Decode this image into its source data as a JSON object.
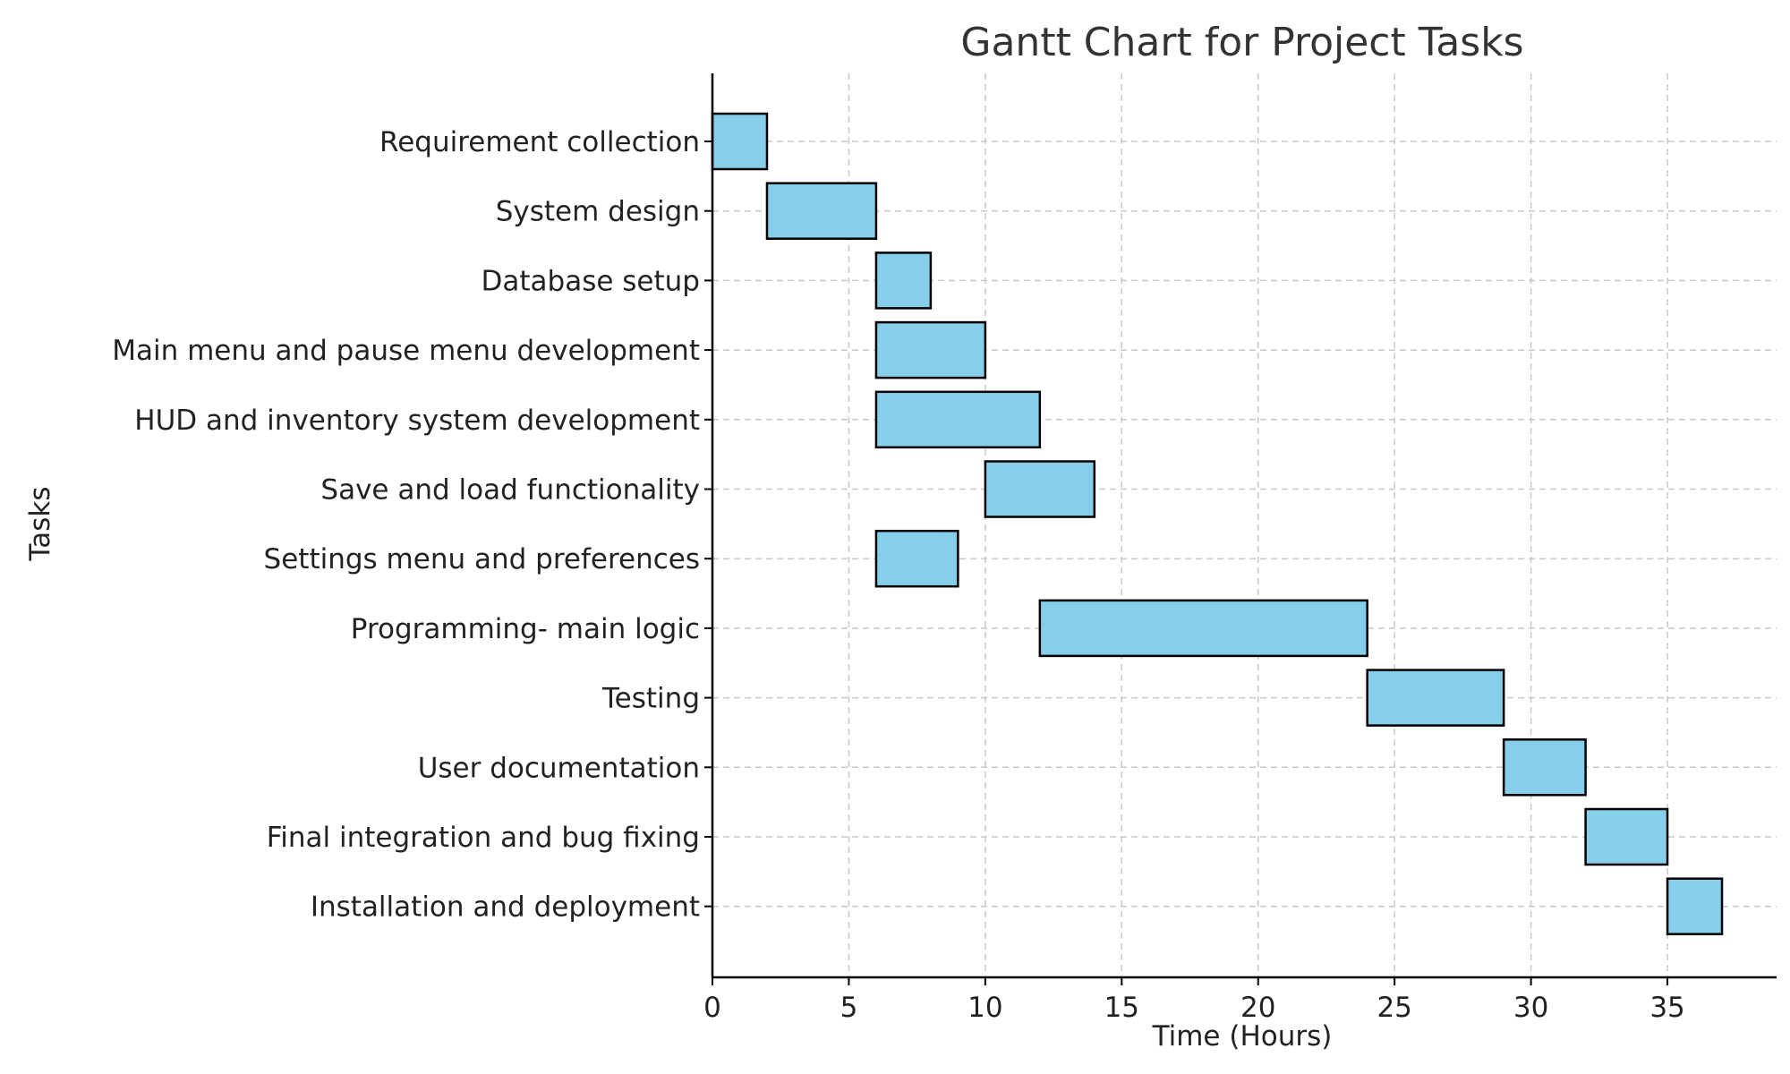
{
  "chart_data": {
    "type": "bar",
    "orientation": "horizontal",
    "title": "Gantt Chart for Project Tasks",
    "xlabel": "Time (Hours)",
    "ylabel": "Tasks",
    "xlim": [
      0,
      39
    ],
    "xticks": [
      0,
      5,
      10,
      15,
      20,
      25,
      30,
      35
    ],
    "grid": true,
    "bar_color": "#87CEEB",
    "bar_edge_color": "#000000",
    "tasks": [
      {
        "name": "Requirement collection",
        "start": 0,
        "end": 2
      },
      {
        "name": "System design",
        "start": 2,
        "end": 6
      },
      {
        "name": "Database setup",
        "start": 6,
        "end": 8
      },
      {
        "name": "Main menu and pause menu development",
        "start": 6,
        "end": 10
      },
      {
        "name": "HUD and inventory system development",
        "start": 6,
        "end": 12
      },
      {
        "name": "Save and load functionality",
        "start": 10,
        "end": 14
      },
      {
        "name": "Settings menu and preferences",
        "start": 6,
        "end": 9
      },
      {
        "name": "Programming- main logic",
        "start": 12,
        "end": 24
      },
      {
        "name": "Testing",
        "start": 24,
        "end": 29
      },
      {
        "name": "User documentation",
        "start": 29,
        "end": 32
      },
      {
        "name": "Final integration and bug fixing",
        "start": 32,
        "end": 35
      },
      {
        "name": "Installation and deployment",
        "start": 35,
        "end": 37
      }
    ]
  }
}
